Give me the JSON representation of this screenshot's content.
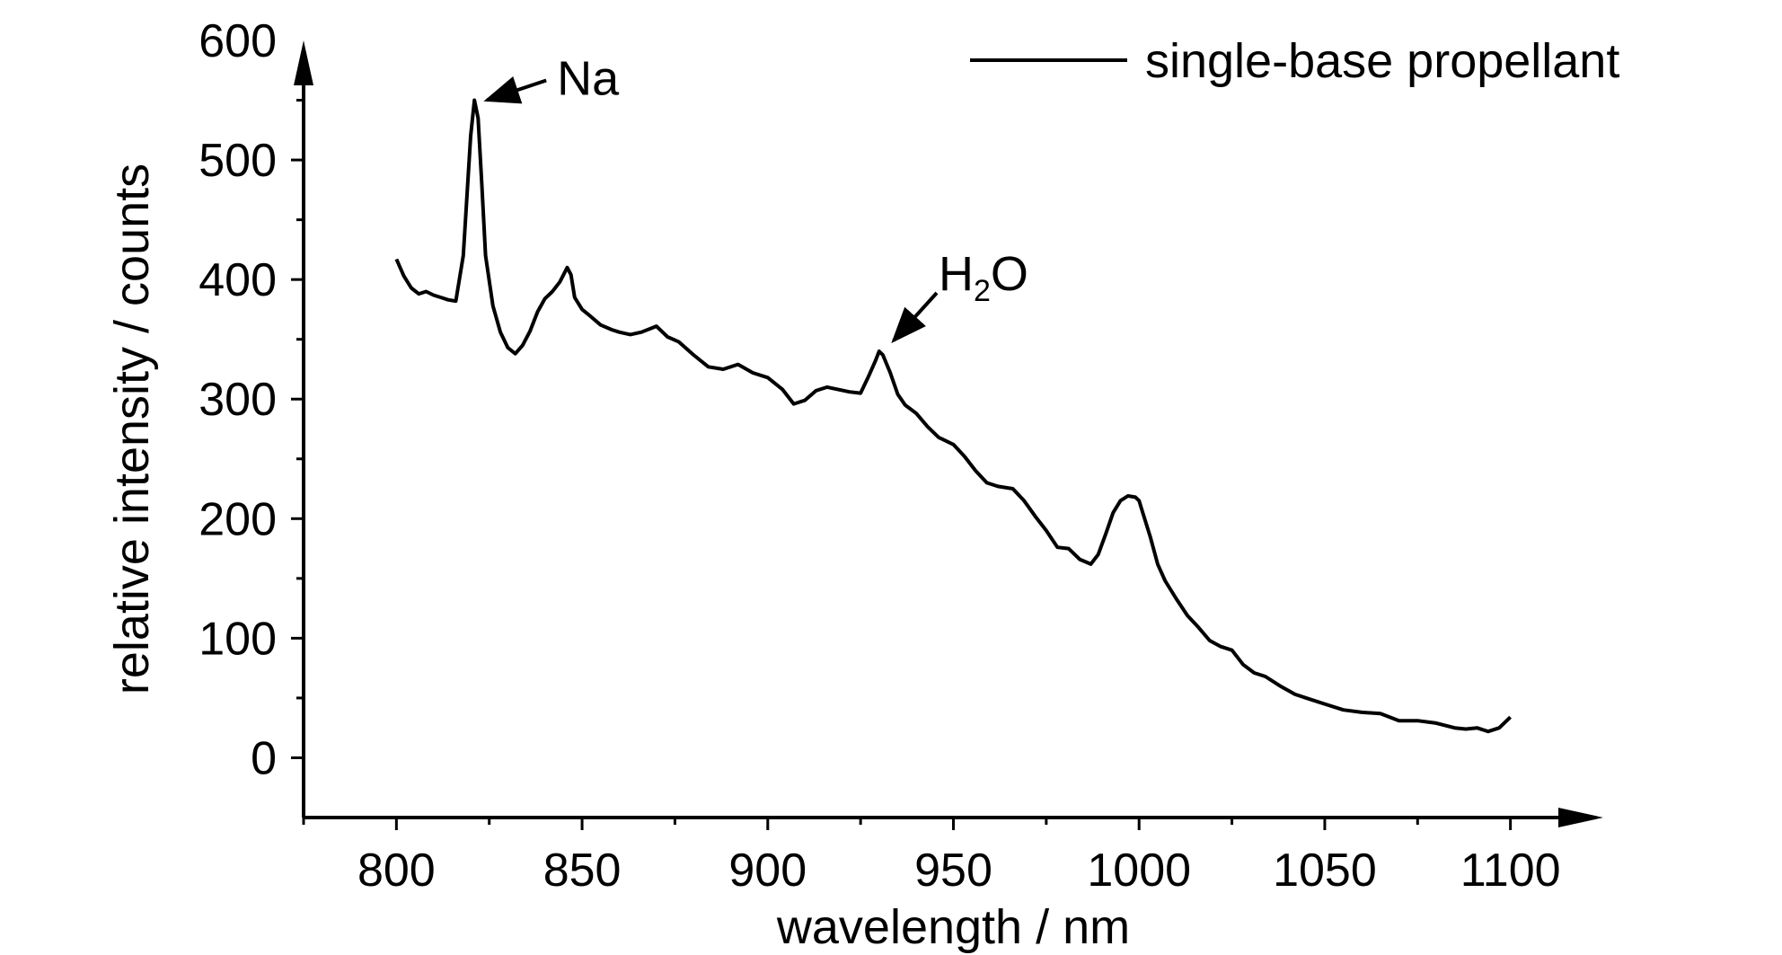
{
  "chart_data": {
    "type": "line",
    "title": "",
    "xlabel": "wavelength / nm",
    "ylabel": "relative intensity / counts",
    "xlim": [
      775,
      1125
    ],
    "ylim": [
      -50,
      600
    ],
    "x_ticks": [
      800,
      850,
      900,
      950,
      1000,
      1050,
      1100
    ],
    "y_ticks": [
      0,
      100,
      200,
      300,
      400,
      500,
      600
    ],
    "grid": false,
    "legend": {
      "position": "top-right",
      "entries": [
        "single-base propellant"
      ]
    },
    "colors": {
      "line": "#000000",
      "axis": "#000000"
    },
    "series": [
      {
        "name": "single-base propellant",
        "x": [
          800,
          802,
          804,
          806,
          808,
          810,
          812,
          814,
          816,
          818,
          819,
          820,
          821,
          822,
          823,
          824,
          826,
          828,
          830,
          832,
          834,
          836,
          838,
          840,
          842,
          844,
          846,
          847,
          848,
          850,
          852,
          855,
          858,
          860,
          863,
          866,
          870,
          873,
          876,
          880,
          884,
          888,
          892,
          896,
          900,
          904,
          907,
          910,
          913,
          916,
          919,
          922,
          925,
          927,
          929,
          930,
          931,
          933,
          935,
          937,
          940,
          943,
          946,
          950,
          953,
          956,
          959,
          962,
          966,
          969,
          972,
          975,
          978,
          981,
          984,
          987,
          989,
          991,
          993,
          995,
          997,
          999,
          1000,
          1001,
          1003,
          1005,
          1007,
          1010,
          1013,
          1016,
          1019,
          1022,
          1025,
          1028,
          1031,
          1034,
          1038,
          1042,
          1046,
          1050,
          1055,
          1060,
          1065,
          1070,
          1075,
          1080,
          1085,
          1088,
          1091,
          1094,
          1097,
          1100
        ],
        "values": [
          417,
          403,
          393,
          388,
          390,
          387,
          385,
          383,
          382,
          420,
          470,
          520,
          550,
          535,
          480,
          420,
          378,
          356,
          343,
          338,
          345,
          357,
          373,
          384,
          390,
          398,
          410,
          404,
          385,
          375,
          370,
          362,
          358,
          356,
          354,
          356,
          361,
          352,
          348,
          337,
          327,
          325,
          329,
          322,
          318,
          308,
          296,
          299,
          307,
          310,
          308,
          306,
          305,
          318,
          332,
          340,
          337,
          322,
          304,
          295,
          288,
          277,
          268,
          262,
          252,
          240,
          230,
          227,
          225,
          215,
          202,
          190,
          176,
          175,
          166,
          162,
          170,
          187,
          205,
          215,
          219,
          218,
          215,
          205,
          185,
          162,
          148,
          133,
          119,
          109,
          98,
          93,
          90,
          78,
          71,
          68,
          60,
          53,
          49,
          45,
          40,
          38,
          37,
          31,
          31,
          29,
          25,
          24,
          25,
          22,
          25,
          34
        ]
      }
    ],
    "annotations": [
      {
        "label": "Na",
        "x": 821,
        "y": 550
      },
      {
        "label": "H",
        "subscript": "2",
        "suffix": "O",
        "x": 931,
        "y": 340
      }
    ]
  }
}
